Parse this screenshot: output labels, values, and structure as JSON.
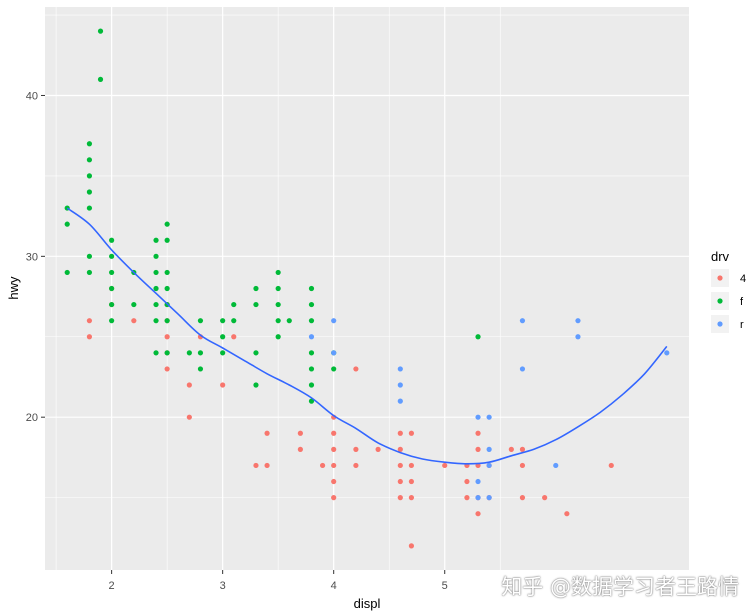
{
  "chart_data": {
    "type": "scatter",
    "title": "",
    "xlabel": "displ",
    "ylabel": "hwy",
    "xlim": [
      1.4,
      7.2
    ],
    "ylim": [
      10.5,
      45.5
    ],
    "x_ticks": [
      2,
      3,
      4,
      5
    ],
    "y_ticks": [
      20,
      30,
      40
    ],
    "grid": true,
    "legend": {
      "title": "drv",
      "position": "right",
      "entries": [
        {
          "label": "4",
          "color": "#F8766D"
        },
        {
          "label": "f",
          "color": "#00BA38"
        },
        {
          "label": "r",
          "color": "#619CFF"
        }
      ]
    },
    "series": [
      {
        "name": "4",
        "color": "#F8766D",
        "points": [
          [
            1.8,
            26
          ],
          [
            1.8,
            25
          ],
          [
            2.0,
            28
          ],
          [
            2.0,
            27
          ],
          [
            2.2,
            26
          ],
          [
            2.5,
            27
          ],
          [
            2.5,
            26
          ],
          [
            2.5,
            25
          ],
          [
            2.5,
            24
          ],
          [
            2.5,
            23
          ],
          [
            2.7,
            22
          ],
          [
            2.7,
            20
          ],
          [
            2.8,
            25
          ],
          [
            3.0,
            22
          ],
          [
            3.1,
            25
          ],
          [
            3.3,
            17
          ],
          [
            3.4,
            17
          ],
          [
            3.4,
            19
          ],
          [
            3.7,
            19
          ],
          [
            3.7,
            18
          ],
          [
            3.9,
            17
          ],
          [
            4.0,
            19
          ],
          [
            4.0,
            18
          ],
          [
            4.0,
            17
          ],
          [
            4.0,
            16
          ],
          [
            4.0,
            15
          ],
          [
            4.0,
            20
          ],
          [
            4.2,
            18
          ],
          [
            4.2,
            17
          ],
          [
            4.2,
            23
          ],
          [
            4.4,
            18
          ],
          [
            4.6,
            19
          ],
          [
            4.6,
            18
          ],
          [
            4.6,
            17
          ],
          [
            4.6,
            16
          ],
          [
            4.6,
            15
          ],
          [
            4.7,
            19
          ],
          [
            4.7,
            17
          ],
          [
            4.7,
            16
          ],
          [
            4.7,
            15
          ],
          [
            4.7,
            12
          ],
          [
            5.0,
            17
          ],
          [
            5.2,
            17
          ],
          [
            5.2,
            16
          ],
          [
            5.2,
            15
          ],
          [
            5.3,
            19
          ],
          [
            5.3,
            18
          ],
          [
            5.3,
            17
          ],
          [
            5.3,
            15
          ],
          [
            5.3,
            14
          ],
          [
            5.4,
            17
          ],
          [
            5.4,
            15
          ],
          [
            5.6,
            18
          ],
          [
            5.7,
            18
          ],
          [
            5.7,
            17
          ],
          [
            5.7,
            15
          ],
          [
            5.9,
            15
          ],
          [
            6.1,
            14
          ],
          [
            6.5,
            17
          ]
        ]
      },
      {
        "name": "f",
        "color": "#00BA38",
        "points": [
          [
            1.6,
            33
          ],
          [
            1.6,
            32
          ],
          [
            1.6,
            29
          ],
          [
            1.8,
            37
          ],
          [
            1.8,
            36
          ],
          [
            1.8,
            35
          ],
          [
            1.8,
            34
          ],
          [
            1.8,
            33
          ],
          [
            1.8,
            29
          ],
          [
            1.8,
            30
          ],
          [
            1.9,
            44
          ],
          [
            1.9,
            41
          ],
          [
            2.0,
            31
          ],
          [
            2.0,
            30
          ],
          [
            2.0,
            29
          ],
          [
            2.0,
            28
          ],
          [
            2.0,
            27
          ],
          [
            2.0,
            26
          ],
          [
            2.2,
            29
          ],
          [
            2.2,
            27
          ],
          [
            2.4,
            31
          ],
          [
            2.4,
            30
          ],
          [
            2.4,
            29
          ],
          [
            2.4,
            28
          ],
          [
            2.4,
            27
          ],
          [
            2.4,
            26
          ],
          [
            2.4,
            24
          ],
          [
            2.5,
            32
          ],
          [
            2.5,
            31
          ],
          [
            2.5,
            29
          ],
          [
            2.5,
            28
          ],
          [
            2.5,
            27
          ],
          [
            2.5,
            26
          ],
          [
            2.5,
            24
          ],
          [
            2.7,
            24
          ],
          [
            2.8,
            26
          ],
          [
            2.8,
            24
          ],
          [
            2.8,
            23
          ],
          [
            3.0,
            26
          ],
          [
            3.0,
            25
          ],
          [
            3.0,
            24
          ],
          [
            3.1,
            27
          ],
          [
            3.1,
            26
          ],
          [
            3.3,
            28
          ],
          [
            3.3,
            27
          ],
          [
            3.3,
            24
          ],
          [
            3.3,
            22
          ],
          [
            3.5,
            29
          ],
          [
            3.5,
            28
          ],
          [
            3.5,
            27
          ],
          [
            3.5,
            26
          ],
          [
            3.5,
            25
          ],
          [
            3.6,
            26
          ],
          [
            3.8,
            28
          ],
          [
            3.8,
            27
          ],
          [
            3.8,
            26
          ],
          [
            3.8,
            24
          ],
          [
            3.8,
            23
          ],
          [
            3.8,
            22
          ],
          [
            3.8,
            21
          ],
          [
            4.0,
            24
          ],
          [
            4.0,
            23
          ],
          [
            5.3,
            25
          ]
        ]
      },
      {
        "name": "r",
        "color": "#619CFF",
        "points": [
          [
            3.8,
            25
          ],
          [
            4.0,
            26
          ],
          [
            4.0,
            24
          ],
          [
            4.6,
            23
          ],
          [
            4.6,
            22
          ],
          [
            4.6,
            21
          ],
          [
            5.3,
            20
          ],
          [
            5.3,
            16
          ],
          [
            5.3,
            15
          ],
          [
            5.4,
            20
          ],
          [
            5.4,
            18
          ],
          [
            5.4,
            17
          ],
          [
            5.4,
            15
          ],
          [
            5.7,
            26
          ],
          [
            5.7,
            23
          ],
          [
            6.0,
            17
          ],
          [
            6.2,
            26
          ],
          [
            6.2,
            25
          ],
          [
            7.0,
            24
          ]
        ]
      }
    ],
    "smooth": {
      "color": "#3366FF",
      "x": [
        1.6,
        1.8,
        2.0,
        2.2,
        2.4,
        2.6,
        2.8,
        3.0,
        3.2,
        3.4,
        3.6,
        3.8,
        4.0,
        4.2,
        4.4,
        4.6,
        4.8,
        5.0,
        5.2,
        5.4,
        5.6,
        5.8,
        6.0,
        6.2,
        6.4,
        6.6,
        6.8,
        7.0
      ],
      "y": [
        33.0,
        32.0,
        30.4,
        29.0,
        27.7,
        26.4,
        25.1,
        24.3,
        23.5,
        22.7,
        22.0,
        21.2,
        20.1,
        19.3,
        18.4,
        17.8,
        17.4,
        17.2,
        17.1,
        17.2,
        17.6,
        18.0,
        18.6,
        19.4,
        20.3,
        21.4,
        22.7,
        24.4
      ]
    }
  },
  "watermark": "知乎 @数据学习者王路情"
}
